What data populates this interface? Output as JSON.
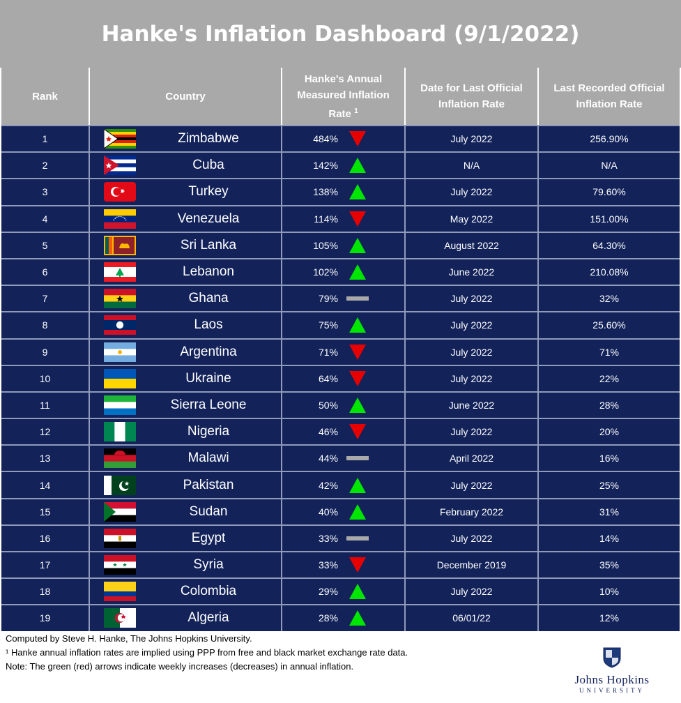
{
  "title": "Hanke's Inflation Dashboard (9/1/2022)",
  "headers": {
    "rank": "Rank",
    "country": "Country",
    "hanke_line1": "Hanke's Annual",
    "hanke_line2": "Measured Inflation",
    "hanke_line3": "Rate",
    "hanke_sup": "1",
    "date": "Date for Last Official Inflation Rate",
    "official": "Last Recorded Official Inflation Rate"
  },
  "colors": {
    "table_bg": "#13235a",
    "header_bg": "#a9a9a9",
    "up_arrow": "#00e600",
    "down_arrow": "#e60000",
    "flat_bar": "#a9a9a9"
  },
  "rows": [
    {
      "rank": "1",
      "country": "Zimbabwe",
      "rate": "484%",
      "trend": "down",
      "date": "July 2022",
      "official": "256.90%",
      "flag": "zimbabwe-flag-icon"
    },
    {
      "rank": "2",
      "country": "Cuba",
      "rate": "142%",
      "trend": "up",
      "date": "N/A",
      "official": "N/A",
      "flag": "cuba-flag-icon"
    },
    {
      "rank": "3",
      "country": "Turkey",
      "rate": "138%",
      "trend": "up",
      "date": "July 2022",
      "official": "79.60%",
      "flag": "turkey-flag-icon"
    },
    {
      "rank": "4",
      "country": "Venezuela",
      "rate": "114%",
      "trend": "down",
      "date": "May 2022",
      "official": "151.00%",
      "flag": "venezuela-flag-icon"
    },
    {
      "rank": "5",
      "country": "Sri Lanka",
      "rate": "105%",
      "trend": "up",
      "date": "August 2022",
      "official": "64.30%",
      "flag": "sri-lanka-flag-icon"
    },
    {
      "rank": "6",
      "country": "Lebanon",
      "rate": "102%",
      "trend": "up",
      "date": "June 2022",
      "official": "210.08%",
      "flag": "lebanon-flag-icon"
    },
    {
      "rank": "7",
      "country": "Ghana",
      "rate": "79%",
      "trend": "flat",
      "date": "July 2022",
      "official": "32%",
      "flag": "ghana-flag-icon"
    },
    {
      "rank": "8",
      "country": "Laos",
      "rate": "75%",
      "trend": "up",
      "date": "July 2022",
      "official": "25.60%",
      "flag": "laos-flag-icon"
    },
    {
      "rank": "9",
      "country": "Argentina",
      "rate": "71%",
      "trend": "down",
      "date": "July 2022",
      "official": "71%",
      "flag": "argentina-flag-icon"
    },
    {
      "rank": "10",
      "country": "Ukraine",
      "rate": "64%",
      "trend": "down",
      "date": "July 2022",
      "official": "22%",
      "flag": "ukraine-flag-icon"
    },
    {
      "rank": "11",
      "country": "Sierra Leone",
      "rate": "50%",
      "trend": "up",
      "date": "June 2022",
      "official": "28%",
      "flag": "sierra-leone-flag-icon"
    },
    {
      "rank": "12",
      "country": "Nigeria",
      "rate": "46%",
      "trend": "down",
      "date": "July 2022",
      "official": "20%",
      "flag": "nigeria-flag-icon"
    },
    {
      "rank": "13",
      "country": "Malawi",
      "rate": "44%",
      "trend": "flat",
      "date": "April 2022",
      "official": "16%",
      "flag": "malawi-flag-icon"
    },
    {
      "rank": "14",
      "country": "Pakistan",
      "rate": "42%",
      "trend": "up",
      "date": "July 2022",
      "official": "25%",
      "flag": "pakistan-flag-icon"
    },
    {
      "rank": "15",
      "country": "Sudan",
      "rate": "40%",
      "trend": "up",
      "date": "February 2022",
      "official": "31%",
      "flag": "sudan-flag-icon"
    },
    {
      "rank": "16",
      "country": "Egypt",
      "rate": "33%",
      "trend": "flat",
      "date": "July 2022",
      "official": "14%",
      "flag": "egypt-flag-icon"
    },
    {
      "rank": "17",
      "country": "Syria",
      "rate": "33%",
      "trend": "down",
      "date": "December 2019",
      "official": "35%",
      "flag": "syria-flag-icon"
    },
    {
      "rank": "18",
      "country": "Colombia",
      "rate": "29%",
      "trend": "up",
      "date": "July 2022",
      "official": "10%",
      "flag": "colombia-flag-icon"
    },
    {
      "rank": "19",
      "country": "Algeria",
      "rate": "28%",
      "trend": "up",
      "date": "06/01/22",
      "official": "12%",
      "flag": "algeria-flag-icon"
    }
  ],
  "footer": {
    "line1": "Computed by Steve H. Hanke, The Johns Hopkins University.",
    "line2": "¹ Hanke annual inflation rates are implied using PPP from free and black market exchange rate data.",
    "line3": "Note: The green (red) arrows indicate weekly increases (decreases) in annual inflation."
  },
  "logo": {
    "name": "Johns Hopkins",
    "sub": "UNIVERSITY",
    "icon": "jhu-shield-icon"
  }
}
